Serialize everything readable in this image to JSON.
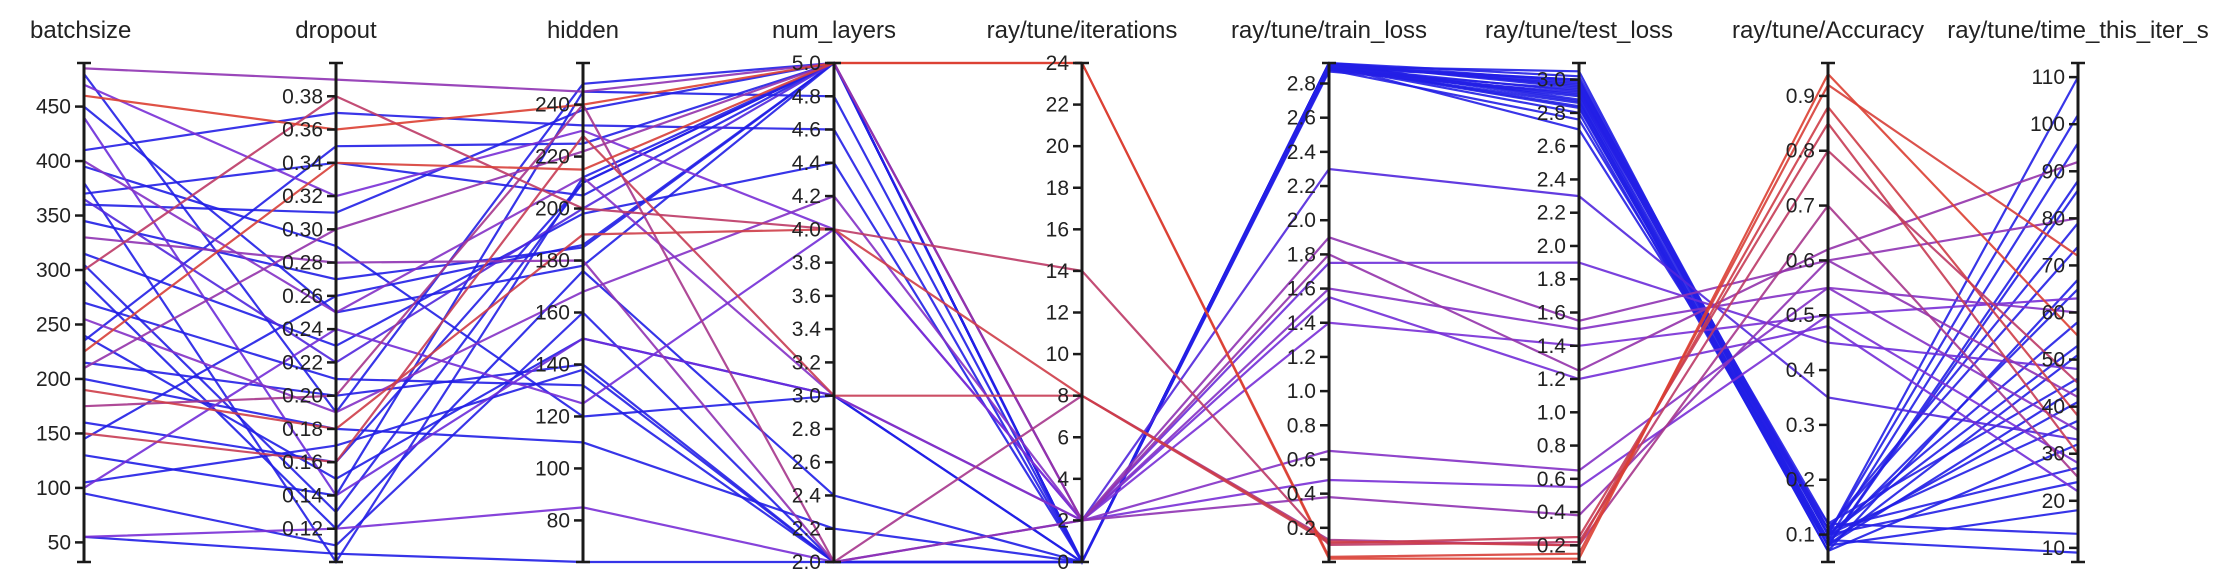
{
  "chart_data": {
    "type": "parallel_coordinates",
    "title": "",
    "legend": "none",
    "grid": false,
    "color_scale": {
      "low": "#1e1ee6",
      "mid": "#7a2fd6",
      "high": "#e0402a",
      "by": "ray/tune/Accuracy"
    },
    "axes": [
      {
        "name": "batchsize",
        "min": 32,
        "max": 490,
        "ticks": [
          50,
          100,
          150,
          200,
          250,
          300,
          350,
          400,
          450
        ],
        "tick_labels": [
          "50",
          "100",
          "150",
          "200",
          "250",
          "300",
          "350",
          "400",
          "450"
        ]
      },
      {
        "name": "dropout",
        "min": 0.1,
        "max": 0.4,
        "ticks": [
          0.12,
          0.14,
          0.16,
          0.18,
          0.2,
          0.22,
          0.24,
          0.26,
          0.28,
          0.3,
          0.32,
          0.34,
          0.36,
          0.38
        ],
        "tick_labels": [
          "0.12",
          "0.14",
          "0.16",
          "0.18",
          "0.20",
          "0.22",
          "0.24",
          "0.26",
          "0.28",
          "0.30",
          "0.32",
          "0.34",
          "0.36",
          "0.38"
        ]
      },
      {
        "name": "hidden",
        "min": 64,
        "max": 256,
        "ticks": [
          80,
          100,
          120,
          140,
          160,
          180,
          200,
          220,
          240
        ],
        "tick_labels": [
          "80",
          "100",
          "120",
          "140",
          "160",
          "180",
          "200",
          "220",
          "240"
        ]
      },
      {
        "name": "num_layers",
        "min": 2.0,
        "max": 5.0,
        "ticks": [
          2.0,
          2.2,
          2.4,
          2.6,
          2.8,
          3.0,
          3.2,
          3.4,
          3.6,
          3.8,
          4.0,
          4.2,
          4.4,
          4.6,
          4.8,
          5.0
        ],
        "tick_labels": [
          "2.0",
          "2.2",
          "2.4",
          "2.6",
          "2.8",
          "3.0",
          "3.2",
          "3.4",
          "3.6",
          "3.8",
          "4.0",
          "4.2",
          "4.4",
          "4.6",
          "4.8",
          "5.0"
        ]
      },
      {
        "name": "ray/tune/iterations",
        "min": 0,
        "max": 24,
        "ticks": [
          0,
          2,
          4,
          6,
          8,
          10,
          12,
          14,
          16,
          18,
          20,
          22,
          24
        ],
        "tick_labels": [
          "0",
          "2",
          "4",
          "6",
          "8",
          "10",
          "12",
          "14",
          "16",
          "18",
          "20",
          "22",
          "24"
        ]
      },
      {
        "name": "ray/tune/train_loss",
        "min": 0.0,
        "max": 2.92,
        "ticks": [
          0.2,
          0.4,
          0.6,
          0.8,
          1.0,
          1.2,
          1.4,
          1.6,
          1.8,
          2.0,
          2.2,
          2.4,
          2.6,
          2.8
        ],
        "tick_labels": [
          "0.2",
          "0.4",
          "0.6",
          "0.8",
          "1.0",
          "1.2",
          "1.4",
          "1.6",
          "1.8",
          "2.0",
          "2.2",
          "2.4",
          "2.6",
          "2.8"
        ]
      },
      {
        "name": "ray/tune/test_loss",
        "min": 0.1,
        "max": 3.1,
        "ticks": [
          0.2,
          0.4,
          0.6,
          0.8,
          1.0,
          1.2,
          1.4,
          1.6,
          1.8,
          2.0,
          2.2,
          2.4,
          2.6,
          2.8,
          3.0
        ],
        "tick_labels": [
          "0.2",
          "0.4",
          "0.6",
          "0.8",
          "1.0",
          "1.2",
          "1.4",
          "1.6",
          "1.8",
          "2.0",
          "2.2",
          "2.4",
          "2.6",
          "2.8",
          "3.0"
        ]
      },
      {
        "name": "ray/tune/Accuracy",
        "min": 0.05,
        "max": 0.96,
        "ticks": [
          0.1,
          0.2,
          0.3,
          0.4,
          0.5,
          0.6,
          0.7,
          0.8,
          0.9
        ],
        "tick_labels": [
          "0.1",
          "0.2",
          "0.3",
          "0.4",
          "0.5",
          "0.6",
          "0.7",
          "0.8",
          "0.9"
        ]
      },
      {
        "name": "ray/tune/time_this_iter_s",
        "min": 7,
        "max": 113,
        "ticks": [
          10,
          20,
          30,
          40,
          50,
          60,
          70,
          80,
          90,
          100,
          110
        ],
        "tick_labels": [
          "10",
          "20",
          "30",
          "40",
          "50",
          "60",
          "70",
          "80",
          "90",
          "100",
          "110"
        ]
      }
    ],
    "series": [
      {
        "values": [
          460,
          0.36,
          240,
          5.0,
          24,
          0.02,
          0.12,
          0.94,
          55
        ]
      },
      {
        "values": [
          225,
          0.34,
          215,
          5.0,
          24,
          0.03,
          0.15,
          0.92,
          72
        ]
      },
      {
        "values": [
          300,
          0.38,
          200,
          4.0,
          14,
          0.1,
          0.22,
          0.8,
          45
        ]
      },
      {
        "values": [
          190,
          0.18,
          190,
          4.0,
          8,
          0.12,
          0.2,
          0.88,
          38
        ]
      },
      {
        "values": [
          150,
          0.16,
          228,
          3.0,
          8,
          0.11,
          0.25,
          0.85,
          30
        ]
      },
      {
        "values": [
          175,
          0.2,
          240,
          2.0,
          8,
          0.13,
          0.2,
          0.7,
          25
        ]
      },
      {
        "values": [
          400,
          0.25,
          212,
          3.0,
          2,
          0.65,
          0.65,
          0.55,
          35
        ]
      },
      {
        "values": [
          330,
          0.28,
          180,
          2.0,
          2,
          0.38,
          0.38,
          0.6,
          42
        ]
      },
      {
        "values": [
          55,
          0.12,
          85,
          2.0,
          2,
          0.48,
          0.55,
          0.5,
          28
        ]
      },
      {
        "values": [
          485,
          0.39,
          245,
          5.0,
          2,
          1.9,
          1.55,
          0.6,
          80
        ]
      },
      {
        "values": [
          470,
          0.32,
          230,
          4.0,
          2,
          1.4,
          1.4,
          0.5,
          63
        ]
      },
      {
        "values": [
          440,
          0.14,
          150,
          3.0,
          2,
          1.75,
          1.9,
          0.45,
          48
        ]
      },
      {
        "values": [
          365,
          0.22,
          200,
          5.0,
          2,
          2.3,
          2.3,
          0.35,
          33
        ]
      },
      {
        "values": [
          255,
          0.19,
          168,
          4.2,
          2,
          1.6,
          1.5,
          0.55,
          60
        ]
      },
      {
        "values": [
          210,
          0.3,
          222,
          5.0,
          2,
          1.8,
          1.25,
          0.62,
          92
        ]
      },
      {
        "values": [
          100,
          0.24,
          125,
          4.0,
          2,
          1.55,
          1.2,
          0.48,
          22
        ]
      },
      {
        "values": [
          370,
          0.34,
          205,
          5.0,
          0,
          2.9,
          3.0,
          0.1,
          110
        ]
      },
      {
        "values": [
          360,
          0.31,
          238,
          5.0,
          0,
          2.92,
          2.95,
          0.09,
          96
        ]
      },
      {
        "values": [
          345,
          0.27,
          185,
          5.0,
          0,
          2.88,
          2.9,
          0.08,
          86
        ]
      },
      {
        "values": [
          305,
          0.13,
          210,
          5.0,
          0,
          2.91,
          2.98,
          0.11,
          74
        ]
      },
      {
        "values": [
          290,
          0.12,
          176,
          2.4,
          0,
          2.89,
          2.86,
          0.07,
          67
        ]
      },
      {
        "values": [
          270,
          0.21,
          132,
          2.0,
          0,
          2.92,
          3.02,
          0.1,
          58
        ]
      },
      {
        "values": [
          240,
          0.15,
          150,
          3.0,
          0,
          2.9,
          2.8,
          0.08,
          51
        ]
      },
      {
        "values": [
          215,
          0.2,
          140,
          2.0,
          0,
          2.87,
          2.92,
          0.12,
          46
        ]
      },
      {
        "values": [
          200,
          0.18,
          110,
          2.2,
          0,
          2.9,
          2.83,
          0.09,
          41
        ]
      },
      {
        "values": [
          160,
          0.16,
          210,
          5.0,
          0,
          2.91,
          2.97,
          0.1,
          37
        ]
      },
      {
        "values": [
          130,
          0.14,
          245,
          4.8,
          0,
          2.92,
          2.88,
          0.07,
          32
        ]
      },
      {
        "values": [
          95,
          0.11,
          160,
          2.0,
          0,
          2.88,
          2.76,
          0.11,
          27
        ]
      },
      {
        "values": [
          55,
          0.105,
          64,
          2.0,
          0,
          2.9,
          3.05,
          0.08,
          18
        ]
      },
      {
        "values": [
          410,
          0.37,
          232,
          4.6,
          0,
          2.91,
          2.7,
          0.12,
          13
        ]
      },
      {
        "values": [
          450,
          0.25,
          178,
          5.0,
          0,
          2.89,
          2.91,
          0.09,
          9
        ]
      },
      {
        "values": [
          480,
          0.19,
          248,
          5.0,
          0,
          2.92,
          2.99,
          0.1,
          102
        ]
      },
      {
        "values": [
          395,
          0.29,
          120,
          3.0,
          0,
          2.9,
          2.84,
          0.08,
          88
        ]
      },
      {
        "values": [
          380,
          0.1,
          212,
          5.0,
          0,
          2.9,
          2.93,
          0.11,
          79
        ]
      },
      {
        "values": [
          315,
          0.23,
          198,
          4.4,
          0,
          2.91,
          2.87,
          0.09,
          65
        ]
      },
      {
        "values": [
          235,
          0.35,
          225,
          5.0,
          0,
          2.92,
          2.96,
          0.1,
          53
        ]
      },
      {
        "values": [
          145,
          0.26,
          186,
          5.0,
          0,
          2.89,
          3.0,
          0.08,
          44
        ]
      },
      {
        "values": [
          105,
          0.17,
          138,
          2.0,
          0,
          2.88,
          2.94,
          0.1,
          24
        ]
      }
    ]
  }
}
